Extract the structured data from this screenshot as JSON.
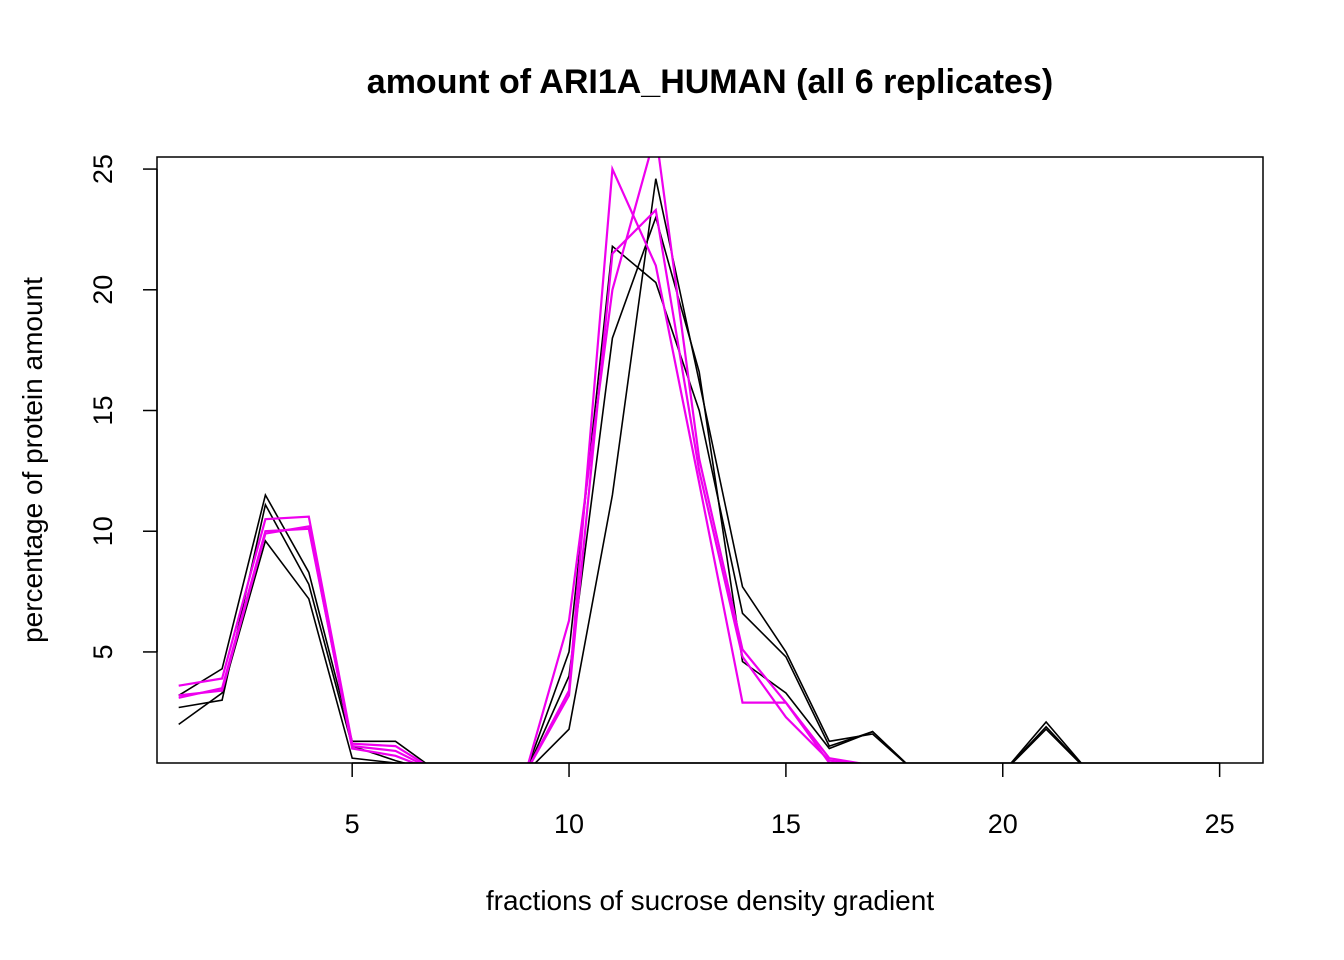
{
  "chart_data": {
    "type": "line",
    "title": "amount of ARI1A_HUMAN (all 6 replicates)",
    "xlabel": "fractions of sucrose density gradient",
    "ylabel": "percentage of protein amount",
    "xlim": [
      0.5,
      26
    ],
    "ylim": [
      0.4,
      25.5
    ],
    "xticks": [
      5,
      10,
      15,
      20,
      25
    ],
    "yticks": [
      5,
      10,
      15,
      20,
      25
    ],
    "x": [
      1,
      2,
      3,
      4,
      5,
      6,
      7,
      8,
      9,
      10,
      11,
      12,
      13,
      14,
      15,
      16,
      17,
      18,
      19,
      20,
      21,
      22,
      23,
      24,
      25
    ],
    "series": [
      {
        "color": "#000000",
        "values": [
          3.2,
          4.3,
          11.5,
          8.3,
          1.3,
          1.3,
          0,
          0,
          0,
          5.0,
          21.8,
          20.3,
          15.0,
          6.6,
          4.8,
          1.1,
          1.7,
          0,
          0,
          0,
          2.1,
          0,
          0,
          0,
          0
        ]
      },
      {
        "color": "#000000",
        "values": [
          2.7,
          3.0,
          11.1,
          7.8,
          1.1,
          0.5,
          0,
          0,
          0,
          1.8,
          11.5,
          24.6,
          16.2,
          7.7,
          5.0,
          1.3,
          1.6,
          0,
          0,
          0,
          1.9,
          0,
          0,
          0,
          0
        ]
      },
      {
        "color": "#000000",
        "values": [
          2.0,
          3.3,
          9.6,
          7.2,
          0.6,
          0.4,
          0,
          0,
          0,
          4.0,
          18.0,
          23.0,
          16.6,
          4.6,
          3.3,
          1.0,
          1.7,
          0,
          0,
          0,
          1.8,
          0,
          0,
          0,
          0
        ]
      },
      {
        "color": "#ee00ee",
        "values": [
          3.6,
          3.9,
          10.5,
          10.6,
          1.2,
          1.1,
          0,
          0,
          0,
          3.4,
          25.0,
          21.0,
          12.0,
          2.9,
          2.9,
          0.4,
          0.3,
          0,
          0,
          0,
          0,
          0,
          0,
          0,
          0
        ]
      },
      {
        "color": "#ee00ee",
        "values": [
          3.1,
          3.5,
          10.0,
          10.1,
          1.1,
          0.9,
          0,
          0,
          0,
          6.3,
          20.0,
          26.5,
          13.0,
          5.1,
          2.9,
          0.6,
          0.3,
          0,
          0,
          0,
          0,
          0,
          0,
          0,
          0
        ]
      },
      {
        "color": "#ee00ee",
        "values": [
          3.2,
          3.4,
          9.9,
          10.2,
          1.0,
          0.7,
          0,
          0,
          0,
          3.2,
          21.5,
          23.3,
          12.5,
          4.8,
          2.3,
          0.5,
          0.3,
          0,
          0,
          0,
          0,
          0,
          0,
          0,
          0
        ]
      }
    ]
  }
}
